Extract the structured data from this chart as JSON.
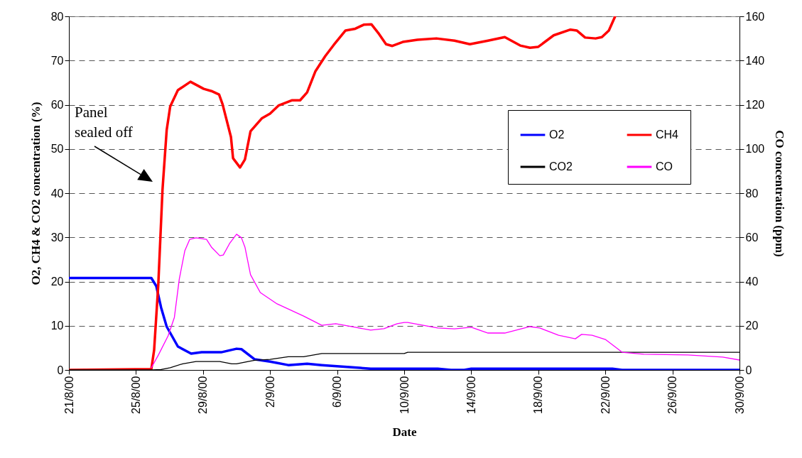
{
  "chart_data": {
    "type": "line",
    "xlabel": "Date",
    "ylabel": "O2, CH4 & CO2 concentration (%)",
    "y2label": "CO concentration (ppm)",
    "xlim": [
      "2000-08-21",
      "2000-09-30"
    ],
    "xticks": [
      {
        "value": "2000-08-21",
        "label": "21/8/00"
      },
      {
        "value": "2000-08-25",
        "label": "25/8/00"
      },
      {
        "value": "2000-08-29",
        "label": "29/8/00"
      },
      {
        "value": "2000-09-02",
        "label": "2/9/00"
      },
      {
        "value": "2000-09-06",
        "label": "6/9/00"
      },
      {
        "value": "2000-09-10",
        "label": "10/9/00"
      },
      {
        "value": "2000-09-14",
        "label": "14/9/00"
      },
      {
        "value": "2000-09-18",
        "label": "18/9/00"
      },
      {
        "value": "2000-09-22",
        "label": "22/9/00"
      },
      {
        "value": "2000-09-26",
        "label": "26/9/00"
      },
      {
        "value": "2000-09-30",
        "label": "30/9/00"
      }
    ],
    "ylim": [
      0,
      80
    ],
    "yticks": [
      0,
      10,
      20,
      30,
      40,
      50,
      60,
      70,
      80
    ],
    "y2lim": [
      0,
      160
    ],
    "y2ticks": [
      0,
      20,
      40,
      60,
      80,
      100,
      120,
      140,
      160
    ],
    "grid": "y",
    "legend": "top right",
    "annotations": [
      "Panel\nsealed off"
    ],
    "series": [
      {
        "name": "O2",
        "color": "#0000ff",
        "x": [
          "2000-08-21",
          "2000-08-25T22:00",
          "2000-08-26T05:00",
          "2000-08-26T12:00",
          "2000-08-26T20:00",
          "2000-08-27T12:00",
          "2000-08-28T07:00",
          "2000-08-28T22:00",
          "2000-08-30T02:00",
          "2000-08-31",
          "2000-08-31T07:00",
          "2000-09-01T02:00",
          "2000-09-02",
          "2000-09-03T02:00",
          "2000-09-04T05:00",
          "2000-09-05T02:00",
          "2000-09-08",
          "2000-09-12",
          "2000-09-12T19:00",
          "2000-09-13T14:00",
          "2000-09-14",
          "2000-09-22T10:00",
          "2000-09-23",
          "2000-09-30"
        ],
        "values": [
          20.8,
          20.8,
          19.0,
          14.1,
          9.8,
          5.3,
          3.7,
          4.0,
          4.0,
          4.8,
          4.7,
          2.4,
          1.9,
          1.1,
          1.4,
          1.1,
          0.3,
          0.3,
          0,
          0,
          0.3,
          0.3,
          0,
          0
        ]
      },
      {
        "name": "CH4",
        "color": "#ff0000",
        "x": [
          "2000-08-21",
          "2000-08-25T22:00",
          "2000-08-26T02:00",
          "2000-08-26T08:00",
          "2000-08-26T14:00",
          "2000-08-26T20:00",
          "2000-08-27T01:00",
          "2000-08-27T12:00",
          "2000-08-28T06:00",
          "2000-08-29T01:00",
          "2000-08-29T12:00",
          "2000-08-29T23:00",
          "2000-08-30T04:00",
          "2000-08-30T16:00",
          "2000-08-30T19:00",
          "2000-08-31T05:00",
          "2000-08-31T12:00",
          "2000-08-31T20:00",
          "2000-09-01T12:00",
          "2000-09-02",
          "2000-09-02T12:00",
          "2000-09-03T07:00",
          "2000-09-03T19:00",
          "2000-09-04T05:00",
          "2000-09-04T17:00",
          "2000-09-05T07:00",
          "2000-09-05T19:00",
          "2000-09-06T12:00",
          "2000-09-07T02:00",
          "2000-09-07T14:00",
          "2000-09-08T01:00",
          "2000-09-08T12:00",
          "2000-09-08T22:00",
          "2000-09-09T07:00",
          "2000-09-09T22:00",
          "2000-09-10T19:00",
          "2000-09-11T22:00",
          "2000-09-13",
          "2000-09-13T22:00",
          "2000-09-15",
          "2000-09-16",
          "2000-09-16T22:00",
          "2000-09-17T12:00",
          "2000-09-18",
          "2000-09-18T22:00",
          "2000-09-19T22:00",
          "2000-09-20T07:00",
          "2000-09-20T19:00",
          "2000-09-21T10:00",
          "2000-09-21T19:00",
          "2000-09-22T05:00",
          "2000-09-22T14:00"
        ],
        "values": [
          0,
          0.2,
          4.5,
          19.4,
          40.8,
          54.3,
          59.6,
          63.3,
          65.2,
          63.6,
          63.1,
          62.3,
          60.1,
          52.7,
          47.9,
          45.8,
          47.6,
          54.0,
          56.9,
          58.0,
          59.8,
          61.0,
          61.0,
          62.8,
          67.6,
          71.0,
          73.5,
          76.8,
          77.2,
          78.1,
          78.2,
          76.0,
          73.7,
          73.3,
          74.2,
          74.7,
          75.0,
          74.5,
          73.7,
          74.5,
          75.3,
          73.4,
          72.9,
          73.1,
          75.7,
          77.0,
          76.8,
          75.2,
          75.0,
          75.3,
          76.8,
          80
        ]
      },
      {
        "name": "CO2",
        "color": "#000000",
        "x": [
          "2000-08-21",
          "2000-08-26",
          "2000-08-26T12:00",
          "2000-08-27T01:00",
          "2000-08-27T19:00",
          "2000-08-28T14:00",
          "2000-08-30",
          "2000-08-30T17:00",
          "2000-08-31",
          "2000-09-01T02:00",
          "2000-09-02",
          "2000-09-03T02:00",
          "2000-09-04",
          "2000-09-05T02:00",
          "2000-09-10",
          "2000-09-10T05:00",
          "2000-09-30"
        ],
        "values": [
          0,
          0,
          0.1,
          0.5,
          1.4,
          1.9,
          1.9,
          1.4,
          1.4,
          2.2,
          2.4,
          3.0,
          3.0,
          3.7,
          3.7,
          4.0,
          4.0
        ]
      },
      {
        "name": "CO",
        "color": "#ff00ff",
        "axis": "y2",
        "x": [
          "2000-08-25T22:00",
          "2000-08-26T08:00",
          "2000-08-26T22:00",
          "2000-08-27T07:00",
          "2000-08-27T14:00",
          "2000-08-27T22:00",
          "2000-08-28T05:00",
          "2000-08-28T14:00",
          "2000-08-29T05:00",
          "2000-08-29T12:00",
          "2000-08-30",
          "2000-08-30T05:00",
          "2000-08-30T14:00",
          "2000-08-31",
          "2000-08-31T07:00",
          "2000-08-31T12:00",
          "2000-08-31T20:00",
          "2000-09-01T10:00",
          "2000-09-02T10:00",
          "2000-09-04",
          "2000-09-05T02:00",
          "2000-09-05T22:00",
          "2000-09-07T02:00",
          "2000-09-08",
          "2000-09-08T19:00",
          "2000-09-09T14:00",
          "2000-09-10",
          "2000-09-10T05:00",
          "2000-09-12",
          "2000-09-13",
          "2000-09-14",
          "2000-09-15",
          "2000-09-16",
          "2000-09-17T12:00",
          "2000-09-18T02:00",
          "2000-09-19T05:00",
          "2000-09-20T05:00",
          "2000-09-20T14:00",
          "2000-09-21T05:00",
          "2000-09-22",
          "2000-09-22T12:00",
          "2000-09-23",
          "2000-09-24T07:00",
          "2000-09-26T22:00",
          "2000-09-29",
          "2000-09-30"
        ],
        "values": [
          1,
          6.7,
          15.4,
          23.8,
          41.1,
          54.0,
          59.1,
          59.8,
          59.1,
          55.6,
          51.7,
          52.0,
          57.2,
          61.4,
          59.8,
          55.6,
          43.1,
          35.0,
          29.9,
          24.4,
          20.2,
          20.9,
          19.3,
          18.0,
          18.7,
          20.9,
          21.5,
          21.5,
          19.0,
          18.6,
          19.3,
          16.7,
          16.7,
          19.6,
          19.0,
          15.7,
          14.1,
          16.1,
          15.7,
          13.8,
          10.9,
          8.0,
          7.1,
          6.8,
          5.8,
          4.5
        ]
      }
    ]
  }
}
